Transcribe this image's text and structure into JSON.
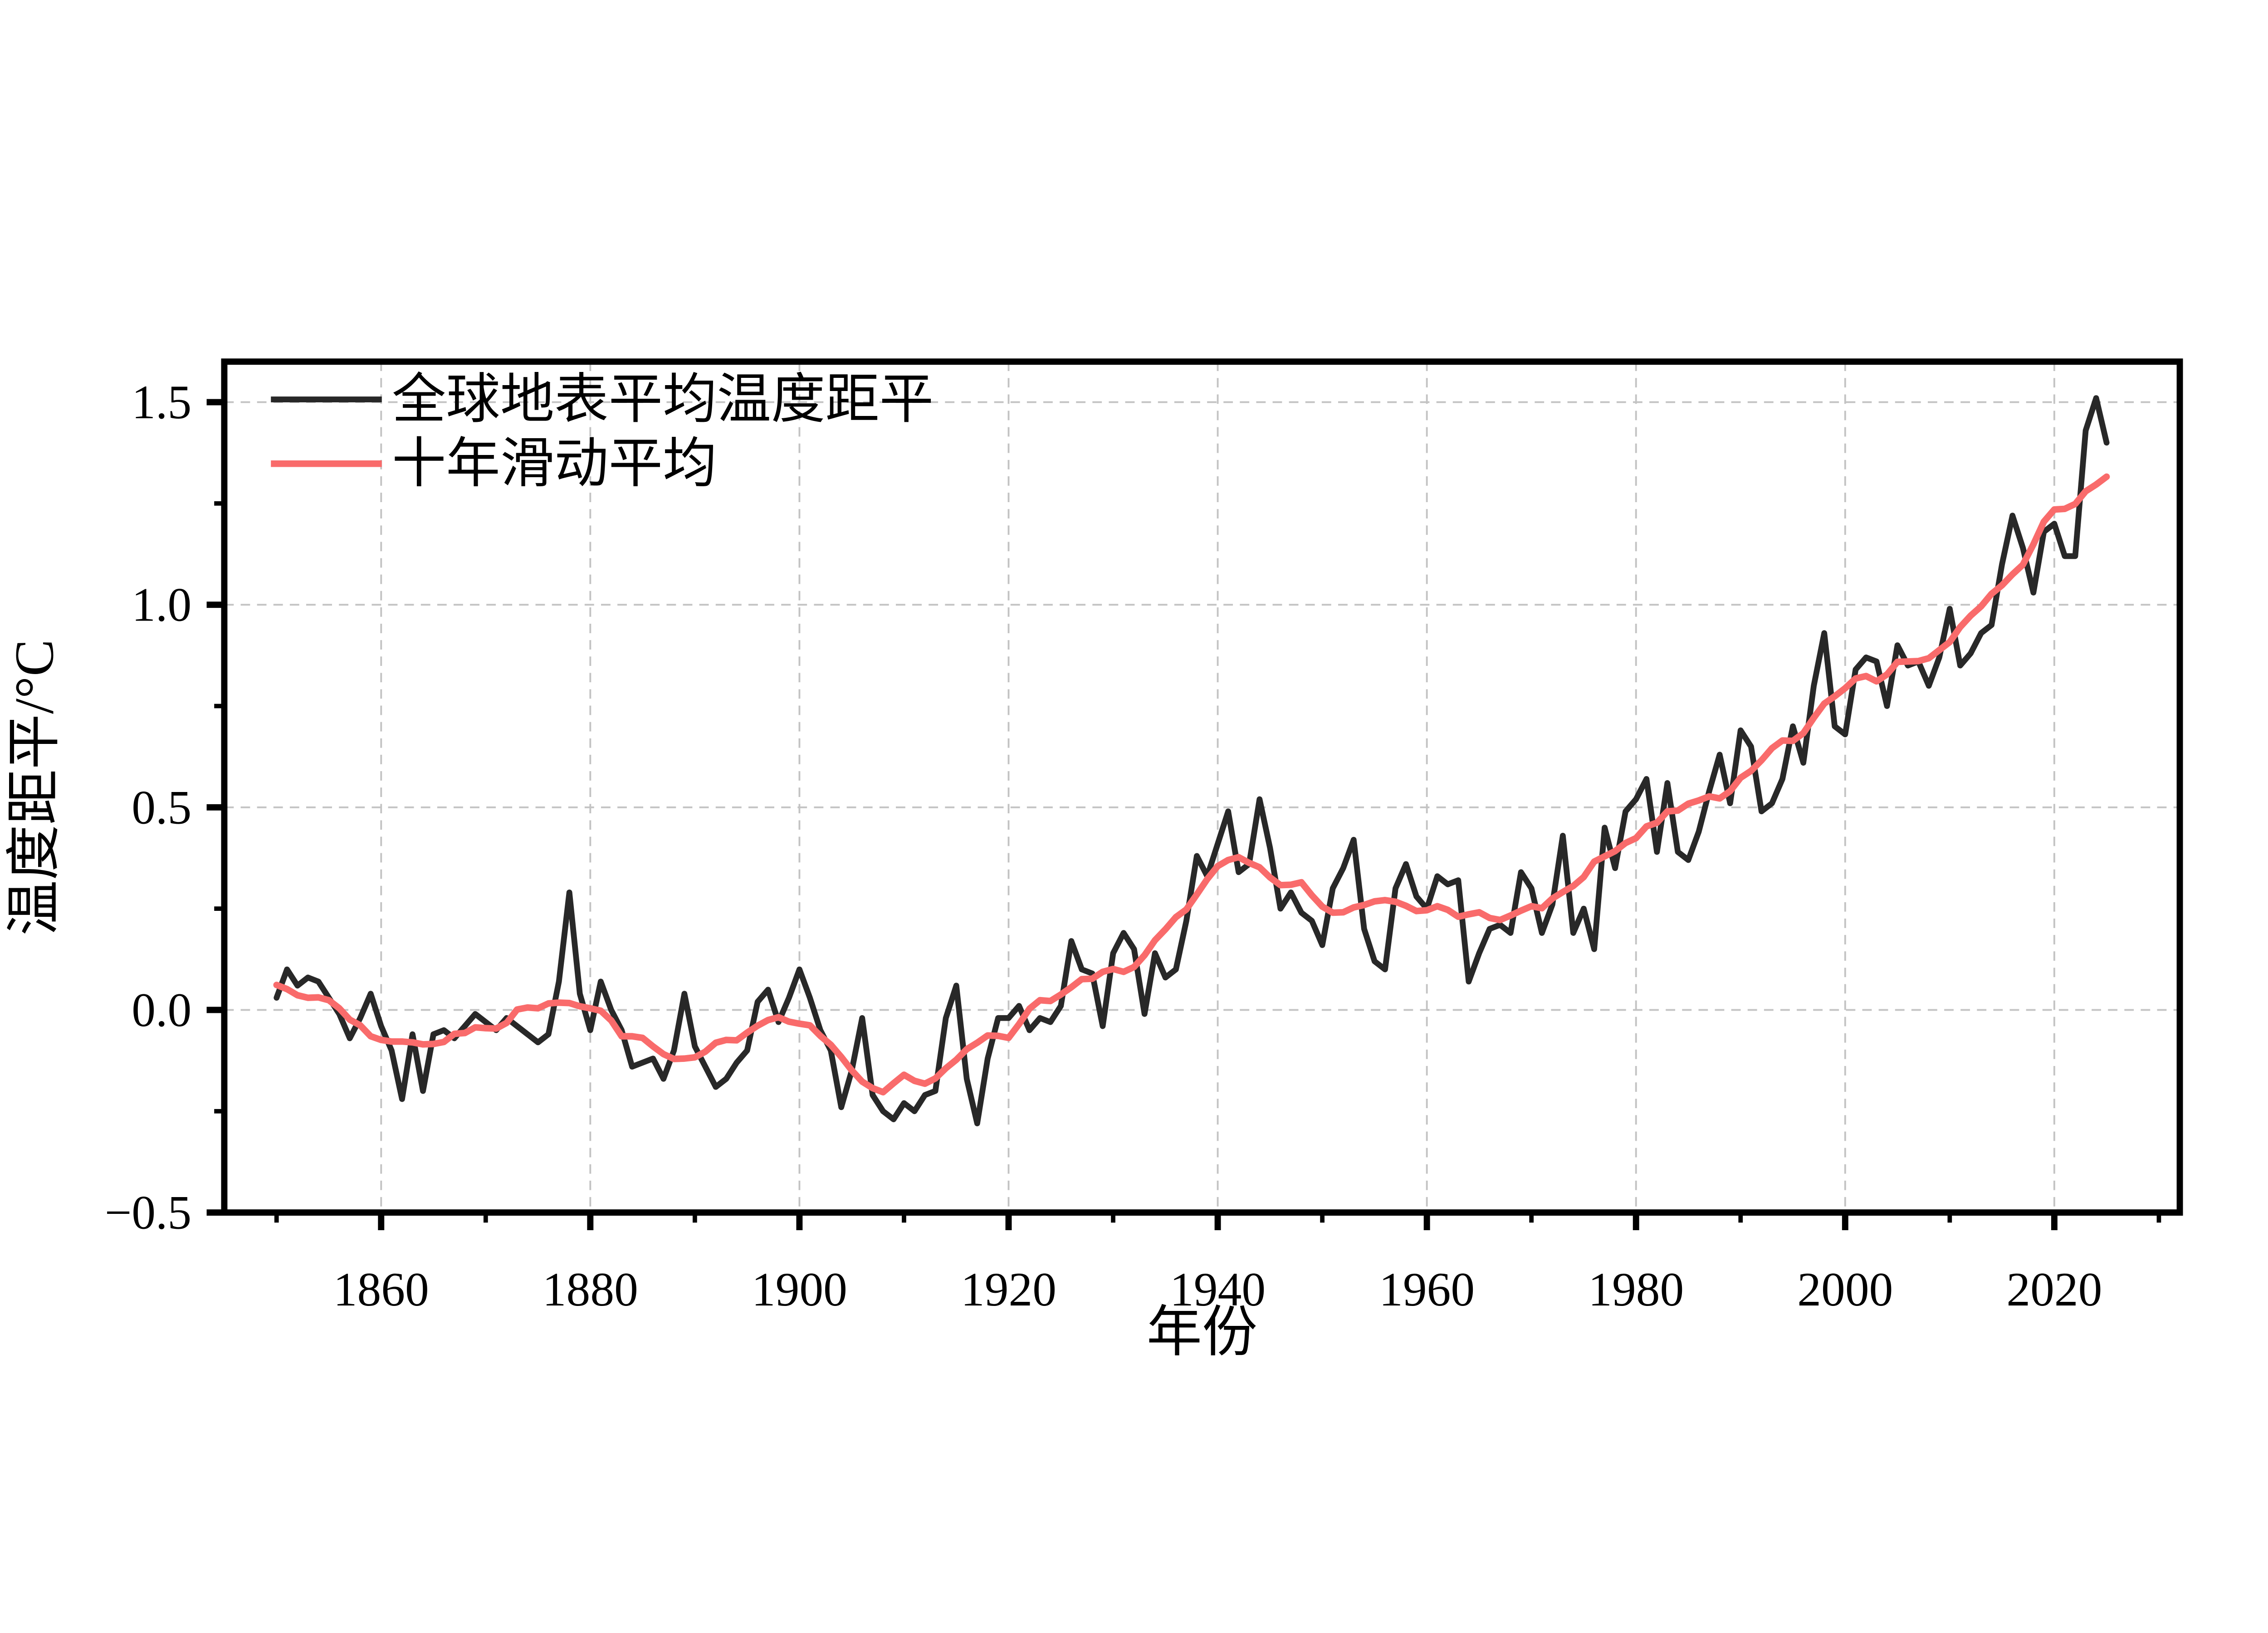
{
  "chart_data": {
    "type": "line",
    "xlabel": "年份",
    "ylabel": "温度距平/°C",
    "xlim": [
      1845,
      2032
    ],
    "ylim": [
      -0.5,
      1.6
    ],
    "grid": {
      "style": "dashed",
      "color": "#c3c3c3",
      "x_values": [
        1860,
        1880,
        1900,
        1920,
        1940,
        1960,
        1980,
        2000,
        2020
      ],
      "y_values": [
        0.0,
        0.5,
        1.0,
        1.5
      ]
    },
    "axes": {
      "x_major_ticks": [
        1860,
        1880,
        1900,
        1920,
        1940,
        1960,
        1980,
        2000,
        2020
      ],
      "x_major_labels": [
        "1860",
        "1880",
        "1900",
        "1920",
        "1940",
        "1960",
        "1980",
        "2000",
        "2020"
      ],
      "x_minor_ticks": [
        1850,
        1870,
        1890,
        1910,
        1930,
        1950,
        1970,
        1990,
        2010,
        2030
      ],
      "y_major_ticks": [
        -0.5,
        0.0,
        0.5,
        1.0,
        1.5
      ],
      "y_major_labels": [
        "−0.5",
        "0.0",
        "0.5",
        "1.0",
        "1.5"
      ],
      "y_minor_ticks": [
        -0.25,
        0.25,
        0.75,
        1.25
      ]
    },
    "legend": {
      "position": "top-left"
    },
    "years": [
      1850,
      1851,
      1852,
      1853,
      1854,
      1855,
      1856,
      1857,
      1858,
      1859,
      1860,
      1861,
      1862,
      1863,
      1864,
      1865,
      1866,
      1867,
      1868,
      1869,
      1870,
      1871,
      1872,
      1873,
      1874,
      1875,
      1876,
      1877,
      1878,
      1879,
      1880,
      1881,
      1882,
      1883,
      1884,
      1885,
      1886,
      1887,
      1888,
      1889,
      1890,
      1891,
      1892,
      1893,
      1894,
      1895,
      1896,
      1897,
      1898,
      1899,
      1900,
      1901,
      1902,
      1903,
      1904,
      1905,
      1906,
      1907,
      1908,
      1909,
      1910,
      1911,
      1912,
      1913,
      1914,
      1915,
      1916,
      1917,
      1918,
      1919,
      1920,
      1921,
      1922,
      1923,
      1924,
      1925,
      1926,
      1927,
      1928,
      1929,
      1930,
      1931,
      1932,
      1933,
      1934,
      1935,
      1936,
      1937,
      1938,
      1939,
      1940,
      1941,
      1942,
      1943,
      1944,
      1945,
      1946,
      1947,
      1948,
      1949,
      1950,
      1951,
      1952,
      1953,
      1954,
      1955,
      1956,
      1957,
      1958,
      1959,
      1960,
      1961,
      1962,
      1963,
      1964,
      1965,
      1966,
      1967,
      1968,
      1969,
      1970,
      1971,
      1972,
      1973,
      1974,
      1975,
      1976,
      1977,
      1978,
      1979,
      1980,
      1981,
      1982,
      1983,
      1984,
      1985,
      1986,
      1987,
      1988,
      1989,
      1990,
      1991,
      1992,
      1993,
      1994,
      1995,
      1996,
      1997,
      1998,
      1999,
      2000,
      2001,
      2002,
      2003,
      2004,
      2005,
      2006,
      2007,
      2008,
      2009,
      2010,
      2011,
      2012,
      2013,
      2014,
      2015,
      2016,
      2017,
      2018,
      2019,
      2020,
      2021,
      2022,
      2023,
      2024,
      2025
    ],
    "series": [
      {
        "name": "全球地表平均温度距平",
        "color": "#282828",
        "values": [
          0.03,
          0.1,
          0.06,
          0.08,
          0.07,
          0.03,
          -0.01,
          -0.07,
          -0.02,
          0.04,
          -0.04,
          -0.1,
          -0.22,
          -0.06,
          -0.2,
          -0.06,
          -0.05,
          -0.07,
          -0.04,
          -0.01,
          -0.03,
          -0.05,
          -0.02,
          -0.04,
          -0.06,
          -0.08,
          -0.06,
          0.07,
          0.29,
          0.04,
          -0.05,
          0.07,
          0.0,
          -0.05,
          -0.14,
          -0.13,
          -0.12,
          -0.17,
          -0.1,
          0.04,
          -0.09,
          -0.14,
          -0.19,
          -0.17,
          -0.13,
          -0.1,
          0.02,
          0.05,
          -0.03,
          0.03,
          0.1,
          0.03,
          -0.05,
          -0.1,
          -0.24,
          -0.15,
          -0.02,
          -0.21,
          -0.25,
          -0.27,
          -0.23,
          -0.25,
          -0.21,
          -0.2,
          -0.02,
          0.06,
          -0.17,
          -0.28,
          -0.12,
          -0.02,
          -0.02,
          0.01,
          -0.05,
          -0.02,
          -0.03,
          0.01,
          0.17,
          0.1,
          0.09,
          -0.04,
          0.14,
          0.19,
          0.15,
          -0.01,
          0.14,
          0.08,
          0.1,
          0.22,
          0.38,
          0.33,
          0.41,
          0.49,
          0.34,
          0.36,
          0.52,
          0.4,
          0.25,
          0.29,
          0.24,
          0.22,
          0.16,
          0.3,
          0.35,
          0.42,
          0.2,
          0.12,
          0.1,
          0.3,
          0.36,
          0.28,
          0.25,
          0.33,
          0.31,
          0.32,
          0.07,
          0.14,
          0.2,
          0.21,
          0.19,
          0.34,
          0.3,
          0.19,
          0.26,
          0.43,
          0.19,
          0.25,
          0.15,
          0.45,
          0.35,
          0.49,
          0.52,
          0.57,
          0.39,
          0.56,
          0.39,
          0.37,
          0.44,
          0.54,
          0.63,
          0.51,
          0.69,
          0.65,
          0.49,
          0.51,
          0.57,
          0.7,
          0.61,
          0.8,
          0.93,
          0.7,
          0.68,
          0.84,
          0.87,
          0.86,
          0.75,
          0.9,
          0.85,
          0.86,
          0.8,
          0.87,
          0.99,
          0.85,
          0.88,
          0.93,
          0.95,
          1.1,
          1.22,
          1.14,
          1.03,
          1.18,
          1.2,
          1.12,
          1.12,
          1.43,
          1.51,
          1.4
        ]
      },
      {
        "name": "十年滑动平均",
        "color": "#F96B6B",
        "type": "derived",
        "derivation": "centered 10-year moving average of series 0 (window shrinks at edges)",
        "window": 10
      }
    ]
  }
}
